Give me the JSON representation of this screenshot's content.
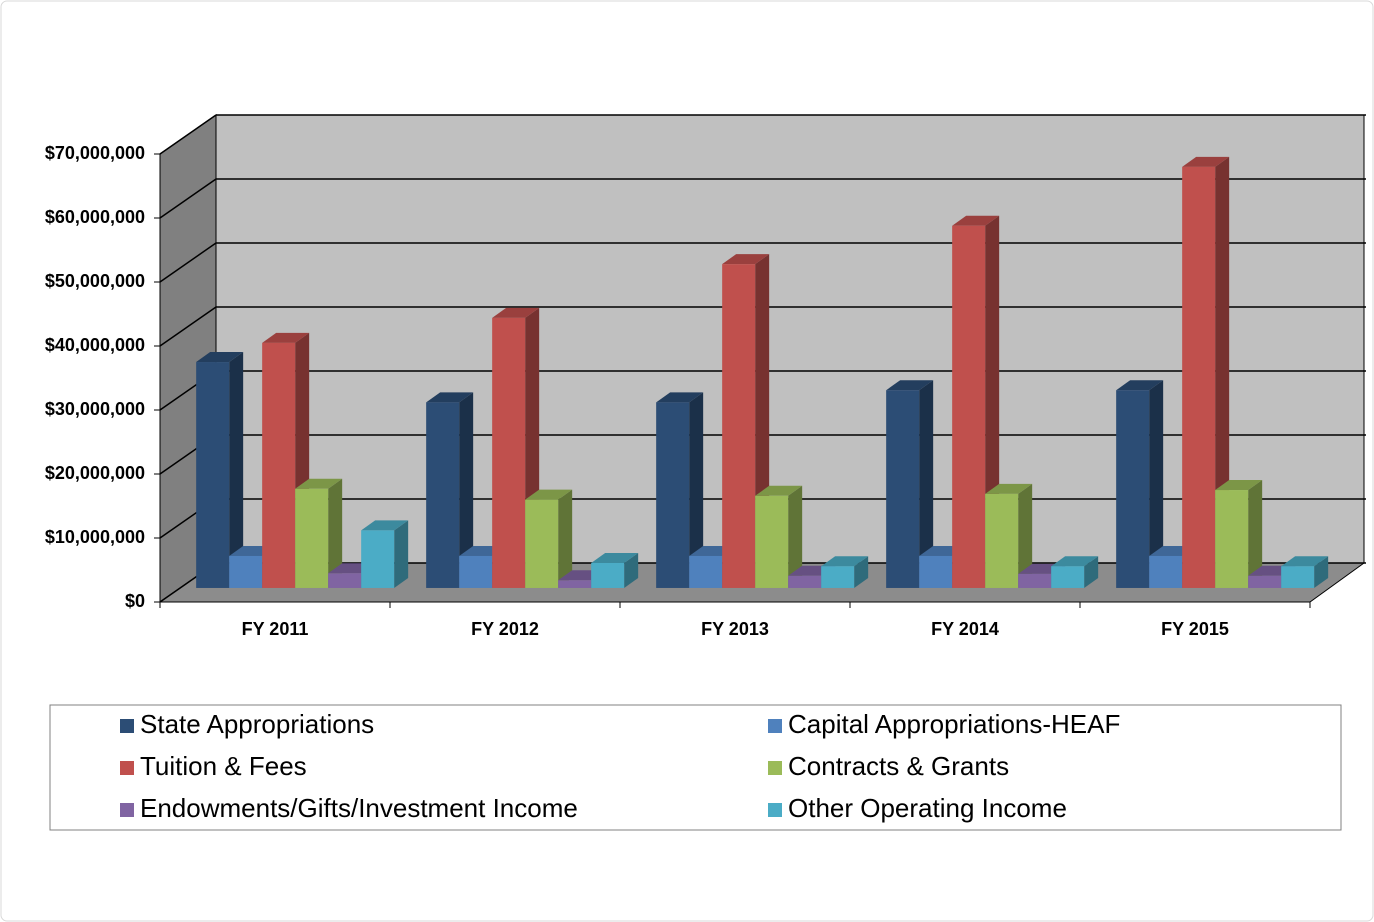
{
  "chart_data": {
    "type": "bar3d",
    "categories": [
      "FY 2011",
      "FY 2012",
      "FY 2013",
      "FY 2014",
      "FY 2015"
    ],
    "series": [
      {
        "name": "State Appropriations",
        "color": "#2c4d75",
        "values": [
          35300000,
          29000000,
          29000000,
          30900000,
          30900000
        ]
      },
      {
        "name": "Capital Appropriations-HEAF",
        "color": "#4f81bd",
        "values": [
          5000000,
          5000000,
          5000000,
          5000000,
          5000000
        ]
      },
      {
        "name": "Tuition & Fees",
        "color": "#c0504d",
        "values": [
          38300000,
          42200000,
          50600000,
          56600000,
          65800000
        ]
      },
      {
        "name": "Contracts & Grants",
        "color": "#9bbb59",
        "values": [
          15500000,
          13800000,
          14400000,
          14700000,
          15300000
        ]
      },
      {
        "name": "Endowments/Gifts/Investment Income",
        "color": "#8064a2",
        "values": [
          2300000,
          1200000,
          1900000,
          2200000,
          1900000
        ]
      },
      {
        "name": "Other Operating Income",
        "color": "#4bacc6",
        "values": [
          9000000,
          3900000,
          3400000,
          3400000,
          3400000
        ]
      }
    ],
    "ylim": [
      0,
      70000000
    ],
    "yticks": [
      {
        "value": 0,
        "label": "$0"
      },
      {
        "value": 10000000,
        "label": "$10,000,000"
      },
      {
        "value": 20000000,
        "label": "$20,000,000"
      },
      {
        "value": 30000000,
        "label": "$30,000,000"
      },
      {
        "value": 40000000,
        "label": "$40,000,000"
      },
      {
        "value": 50000000,
        "label": "$50,000,000"
      },
      {
        "value": 60000000,
        "label": "$60,000,000"
      },
      {
        "value": 70000000,
        "label": "$70,000,000"
      }
    ],
    "grid": true
  }
}
